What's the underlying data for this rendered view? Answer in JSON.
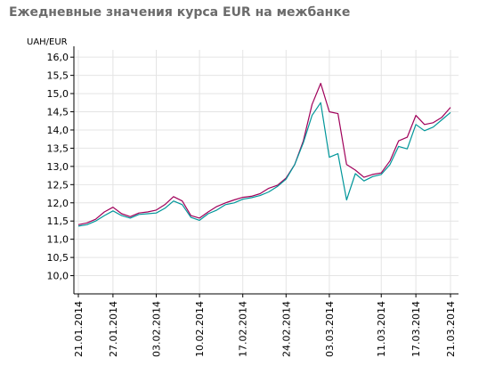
{
  "chart_data": {
    "type": "line",
    "title": "Ежедневные значения курса EUR на межбанке",
    "ylabel": "UAH/EUR",
    "ylim": [
      9.5,
      16.2
    ],
    "yticks": [
      "10,0",
      "10,5",
      "11,0",
      "11,5",
      "12,0",
      "12,5",
      "13,0",
      "13,5",
      "14,0",
      "14,5",
      "15,0",
      "15,5",
      "16,0"
    ],
    "xticks": [
      "21.01.2014",
      "27.01.2014",
      "03.02.2014",
      "10.02.2014",
      "17.02.2014",
      "24.02.2014",
      "03.03.2014",
      "11.03.2014",
      "17.03.2014",
      "21.03.2014"
    ],
    "x": [
      "21.01.2014",
      "22.01.2014",
      "23.01.2014",
      "24.01.2014",
      "27.01.2014",
      "28.01.2014",
      "29.01.2014",
      "30.01.2014",
      "31.01.2014",
      "03.02.2014",
      "04.02.2014",
      "05.02.2014",
      "06.02.2014",
      "07.02.2014",
      "10.02.2014",
      "11.02.2014",
      "12.02.2014",
      "13.02.2014",
      "14.02.2014",
      "17.02.2014",
      "18.02.2014",
      "19.02.2014",
      "20.02.2014",
      "21.02.2014",
      "24.02.2014",
      "25.02.2014",
      "26.02.2014",
      "27.02.2014",
      "28.02.2014",
      "03.03.2014",
      "04.03.2014",
      "05.03.2014",
      "06.03.2014",
      "07.03.2014",
      "10.03.2014",
      "11.03.2014",
      "12.03.2014",
      "13.03.2014",
      "14.03.2014",
      "17.03.2014",
      "18.03.2014",
      "19.03.2014",
      "20.03.2014",
      "21.03.2014"
    ],
    "series": [
      {
        "color": "#a0005a",
        "values": [
          11.4,
          11.45,
          11.55,
          11.75,
          11.88,
          11.7,
          11.62,
          11.72,
          11.75,
          11.8,
          11.95,
          12.17,
          12.05,
          11.65,
          11.58,
          11.75,
          11.9,
          12.0,
          12.08,
          12.15,
          12.18,
          12.25,
          12.4,
          12.48,
          12.68,
          13.05,
          13.7,
          14.7,
          15.28,
          14.5,
          14.45,
          13.05,
          12.9,
          12.7,
          12.78,
          12.82,
          13.15,
          13.7,
          13.8,
          14.4,
          14.15,
          14.2,
          14.35,
          14.62
        ]
      },
      {
        "color": "#00969a",
        "values": [
          11.36,
          11.4,
          11.5,
          11.65,
          11.78,
          11.65,
          11.58,
          11.68,
          11.7,
          11.72,
          11.85,
          12.05,
          11.95,
          11.6,
          11.52,
          11.7,
          11.8,
          11.95,
          12.0,
          12.1,
          12.14,
          12.2,
          12.3,
          12.45,
          12.65,
          13.05,
          13.65,
          14.4,
          14.75,
          13.25,
          13.35,
          12.08,
          12.8,
          12.6,
          12.72,
          12.78,
          13.05,
          13.55,
          13.48,
          14.15,
          13.98,
          14.08,
          14.28,
          14.48
        ]
      }
    ],
    "grid": true,
    "legend": "none"
  }
}
